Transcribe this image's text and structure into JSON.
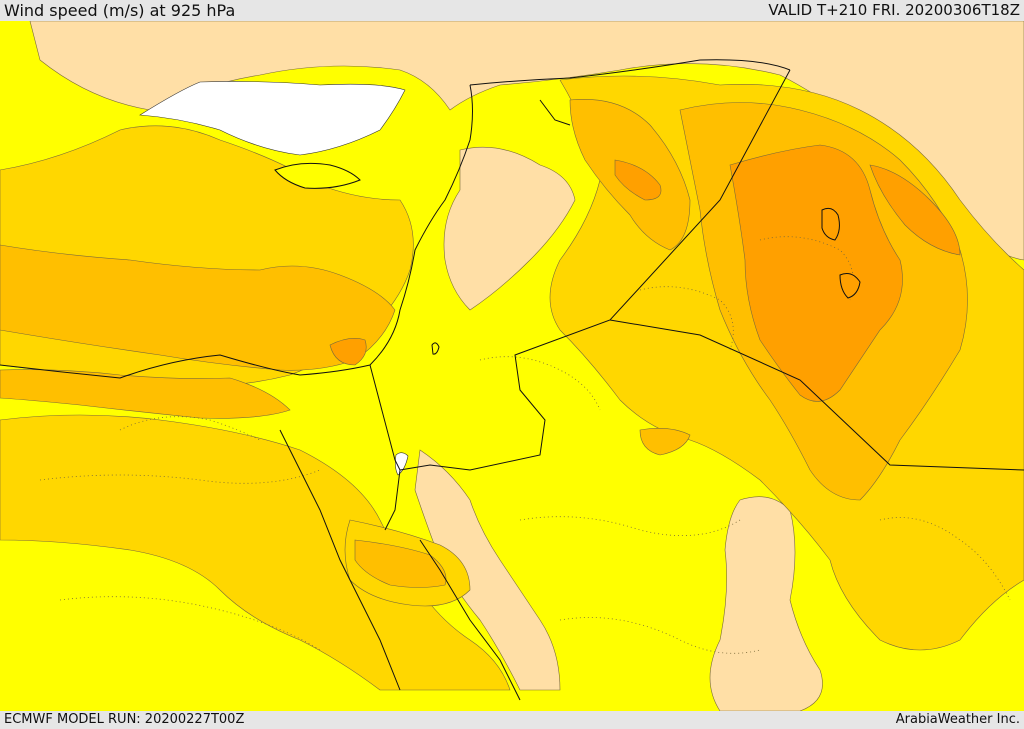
{
  "header": {
    "title": "Wind speed (m/s) at 925 hPa",
    "valid": "VALID T+210 FRI. 20200306T18Z"
  },
  "footer": {
    "model_run": "ECMWF MODEL RUN: 20200227T00Z",
    "credit": "ArabiaWeather Inc."
  },
  "map_colors": {
    "calm": "#ffdfa6",
    "light": "#ffff00",
    "moderate": "#ffd700",
    "fresh": "#ffbf00",
    "strong": "#ffa000",
    "very_strong": "#f08b10",
    "water_ice": "#ffffff"
  }
}
